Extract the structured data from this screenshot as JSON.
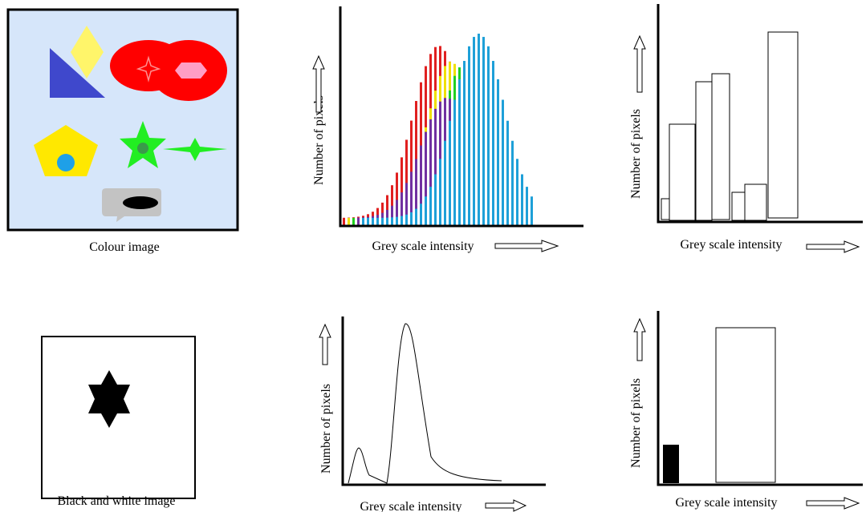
{
  "top_row": {
    "image_caption": "Colour image",
    "histogram": {
      "y_label": "Number of pixels",
      "x_label": "Grey scale intensity"
    },
    "bar_histogram": {
      "y_label": "Number of pixels",
      "x_label": "Grey scale intensity"
    }
  },
  "bottom_row": {
    "image_caption": "Black and white image",
    "histogram": {
      "y_label": "Number of pixels",
      "x_label": "Grey scale intensity"
    },
    "bar_histogram": {
      "y_label": "Number of pixels",
      "x_label": "Grey scale intensity"
    }
  }
}
